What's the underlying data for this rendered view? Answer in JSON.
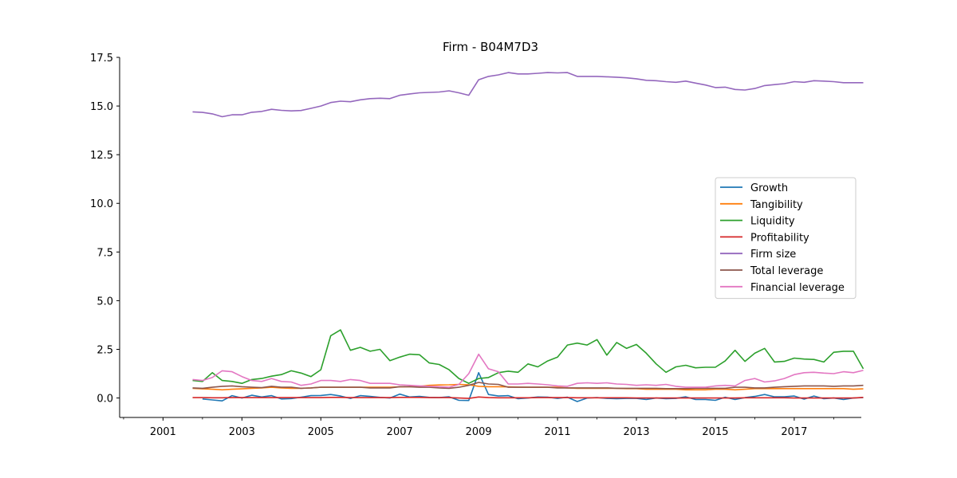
{
  "chart_data": {
    "type": "line",
    "title": "Firm - B04M7D3",
    "xlabel": "",
    "ylabel": "",
    "xlim": [
      1999.9,
      2018.7
    ],
    "ylim": [
      -1.0,
      17.5
    ],
    "x_ticks": [
      "2001",
      "2003",
      "2005",
      "2007",
      "2009",
      "2011",
      "2013",
      "2015",
      "2017"
    ],
    "y_ticks": [
      "0.0",
      "2.5",
      "5.0",
      "7.5",
      "10.0",
      "12.5",
      "15.0",
      "17.5"
    ],
    "legend": "right",
    "grid": false,
    "x": [
      2001.75,
      2002.0,
      2002.25,
      2002.5,
      2002.75,
      2003.0,
      2003.25,
      2003.5,
      2003.75,
      2004.0,
      2004.25,
      2004.5,
      2004.75,
      2005.0,
      2005.25,
      2005.5,
      2005.75,
      2006.0,
      2006.25,
      2006.5,
      2006.75,
      2007.0,
      2007.25,
      2007.5,
      2007.75,
      2008.0,
      2008.25,
      2008.5,
      2008.75,
      2009.0,
      2009.25,
      2009.5,
      2009.75,
      2010.0,
      2010.25,
      2010.5,
      2010.75,
      2011.0,
      2011.25,
      2011.5,
      2011.75,
      2012.0,
      2012.25,
      2012.5,
      2012.75,
      2013.0,
      2013.25,
      2013.5,
      2013.75,
      2014.0,
      2014.25,
      2014.5,
      2014.75,
      2015.0,
      2015.25,
      2015.5,
      2015.75,
      2016.0,
      2016.25,
      2016.5,
      2016.75,
      2017.0,
      2017.25,
      2017.5,
      2017.75,
      2018.0,
      2018.25,
      2018.5,
      2018.75
    ],
    "series": [
      {
        "name": "Growth",
        "color": "#1f77b4",
        "values": [
          null,
          -0.05,
          -0.1,
          -0.15,
          0.12,
          0.0,
          0.14,
          0.05,
          0.12,
          -0.05,
          -0.03,
          0.04,
          0.12,
          0.13,
          0.18,
          0.1,
          -0.02,
          0.12,
          0.08,
          0.03,
          0.0,
          0.2,
          0.05,
          0.08,
          0.03,
          0.02,
          0.06,
          -0.12,
          -0.13,
          1.3,
          0.18,
          0.1,
          0.12,
          -0.04,
          0.0,
          0.05,
          0.04,
          -0.02,
          0.04,
          -0.18,
          0.0,
          0.02,
          -0.02,
          -0.04,
          -0.02,
          -0.02,
          -0.08,
          0.0,
          -0.04,
          -0.02,
          0.06,
          -0.08,
          -0.08,
          -0.12,
          0.04,
          -0.08,
          0.02,
          0.08,
          0.18,
          0.06,
          0.06,
          0.1,
          -0.06,
          0.1,
          -0.04,
          0.0,
          -0.08,
          0.0,
          0.02
        ]
      },
      {
        "name": "Tangibility",
        "color": "#ff7f0e",
        "values": [
          0.5,
          0.47,
          0.45,
          0.42,
          0.45,
          0.47,
          0.5,
          0.52,
          0.55,
          0.52,
          0.5,
          0.5,
          0.52,
          0.55,
          0.55,
          0.55,
          0.55,
          0.55,
          0.55,
          0.55,
          0.55,
          0.57,
          0.58,
          0.6,
          0.65,
          0.67,
          0.68,
          0.7,
          0.68,
          0.6,
          0.58,
          0.58,
          0.57,
          0.56,
          0.55,
          0.55,
          0.55,
          0.55,
          0.52,
          0.5,
          0.5,
          0.5,
          0.5,
          0.5,
          0.48,
          0.48,
          0.45,
          0.45,
          0.45,
          0.45,
          0.42,
          0.42,
          0.42,
          0.45,
          0.45,
          0.42,
          0.45,
          0.48,
          0.48,
          0.48,
          0.48,
          0.48,
          0.48,
          0.48,
          0.48,
          0.48,
          0.48,
          0.45,
          0.47
        ]
      },
      {
        "name": "Liquidity",
        "color": "#2ca02c",
        "values": [
          0.9,
          0.85,
          1.3,
          0.9,
          0.85,
          0.75,
          0.95,
          1.0,
          1.12,
          1.2,
          1.4,
          1.28,
          1.1,
          1.45,
          3.2,
          3.5,
          2.45,
          2.6,
          2.4,
          2.5,
          1.92,
          2.1,
          2.25,
          2.22,
          1.8,
          1.72,
          1.45,
          1.0,
          0.75,
          1.0,
          1.05,
          1.3,
          1.38,
          1.32,
          1.75,
          1.6,
          1.9,
          2.1,
          2.72,
          2.82,
          2.72,
          3.0,
          2.2,
          2.85,
          2.55,
          2.75,
          2.3,
          1.75,
          1.32,
          1.6,
          1.68,
          1.55,
          1.58,
          1.58,
          1.9,
          2.45,
          1.88,
          2.3,
          2.55,
          1.85,
          1.88,
          2.05,
          2.0,
          1.98,
          1.85,
          2.35,
          2.4,
          2.4,
          1.5
        ]
      },
      {
        "name": "Profitability",
        "color": "#d62728",
        "values": [
          0.02,
          0.02,
          0.01,
          0.01,
          0.02,
          0.02,
          0.02,
          0.02,
          0.02,
          0.02,
          0.02,
          0.02,
          0.02,
          0.02,
          0.03,
          0.03,
          0.02,
          0.02,
          0.02,
          0.02,
          0.02,
          0.03,
          0.03,
          0.03,
          0.02,
          0.02,
          0.02,
          0.0,
          -0.02,
          0.05,
          0.02,
          0.01,
          0.01,
          0.01,
          0.01,
          0.02,
          0.02,
          0.02,
          0.02,
          0.01,
          0.01,
          0.01,
          0.01,
          0.01,
          0.01,
          0.0,
          0.0,
          0.0,
          0.0,
          0.0,
          0.0,
          0.0,
          0.0,
          0.0,
          0.0,
          0.0,
          0.01,
          0.01,
          0.01,
          0.01,
          0.01,
          0.0,
          0.0,
          0.0,
          0.0,
          0.0,
          0.0,
          0.0,
          0.03
        ]
      },
      {
        "name": "Firm size",
        "color": "#9467bd",
        "values": [
          14.7,
          14.67,
          14.6,
          14.45,
          14.55,
          14.55,
          14.68,
          14.72,
          14.83,
          14.78,
          14.75,
          14.77,
          14.88,
          15.0,
          15.18,
          15.25,
          15.22,
          15.32,
          15.38,
          15.4,
          15.38,
          15.55,
          15.62,
          15.68,
          15.7,
          15.72,
          15.78,
          15.68,
          15.55,
          16.35,
          16.52,
          16.6,
          16.72,
          16.65,
          16.65,
          16.68,
          16.72,
          16.7,
          16.72,
          16.52,
          16.52,
          16.52,
          16.5,
          16.48,
          16.45,
          16.4,
          16.32,
          16.3,
          16.25,
          16.22,
          16.28,
          16.18,
          16.08,
          15.95,
          15.97,
          15.85,
          15.82,
          15.9,
          16.05,
          16.1,
          16.15,
          16.25,
          16.22,
          16.3,
          16.28,
          16.25,
          16.2,
          16.2,
          16.2
        ]
      },
      {
        "name": "Total leverage",
        "color": "#8c564b",
        "values": [
          0.52,
          0.5,
          0.55,
          0.6,
          0.62,
          0.58,
          0.55,
          0.53,
          0.6,
          0.55,
          0.55,
          0.5,
          0.52,
          0.55,
          0.55,
          0.55,
          0.55,
          0.55,
          0.52,
          0.52,
          0.52,
          0.58,
          0.58,
          0.55,
          0.55,
          0.52,
          0.5,
          0.55,
          0.65,
          0.8,
          0.72,
          0.7,
          0.55,
          0.55,
          0.55,
          0.55,
          0.55,
          0.52,
          0.52,
          0.52,
          0.52,
          0.52,
          0.52,
          0.5,
          0.5,
          0.5,
          0.5,
          0.5,
          0.48,
          0.48,
          0.48,
          0.5,
          0.5,
          0.5,
          0.5,
          0.55,
          0.55,
          0.52,
          0.52,
          0.55,
          0.58,
          0.6,
          0.62,
          0.62,
          0.62,
          0.6,
          0.62,
          0.62,
          0.65
        ]
      },
      {
        "name": "Financial leverage",
        "color": "#e377c2",
        "values": [
          0.95,
          0.9,
          1.05,
          1.4,
          1.35,
          1.1,
          0.9,
          0.85,
          1.0,
          0.85,
          0.82,
          0.65,
          0.72,
          0.9,
          0.9,
          0.85,
          0.95,
          0.9,
          0.75,
          0.75,
          0.75,
          0.68,
          0.65,
          0.62,
          0.6,
          0.58,
          0.55,
          0.7,
          1.25,
          2.25,
          1.5,
          1.35,
          0.72,
          0.72,
          0.75,
          0.72,
          0.68,
          0.62,
          0.6,
          0.75,
          0.78,
          0.75,
          0.78,
          0.72,
          0.7,
          0.65,
          0.68,
          0.65,
          0.7,
          0.6,
          0.55,
          0.55,
          0.55,
          0.62,
          0.65,
          0.62,
          0.9,
          1.0,
          0.82,
          0.88,
          1.0,
          1.2,
          1.3,
          1.32,
          1.28,
          1.25,
          1.35,
          1.3,
          1.42
        ]
      }
    ]
  }
}
